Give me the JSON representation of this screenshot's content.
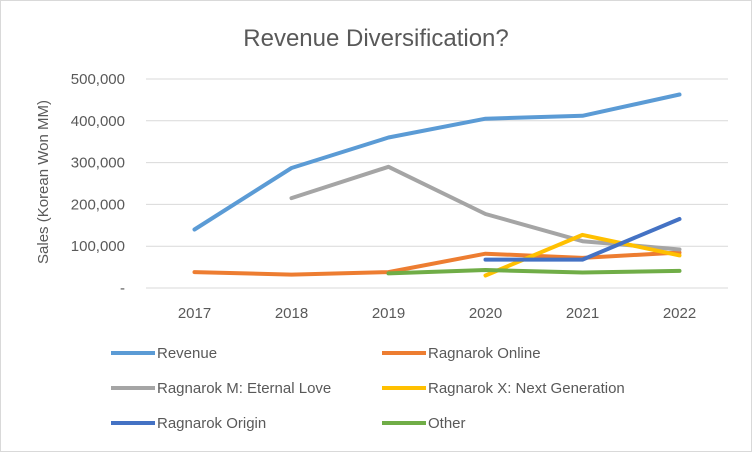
{
  "chart_data": {
    "type": "line",
    "title": "Revenue Diversification?",
    "xlabel": "",
    "ylabel": "Sales (Korean Won MM)",
    "x": [
      "2017",
      "2018",
      "2019",
      "2020",
      "2021",
      "2022"
    ],
    "ylim": [
      0,
      500000
    ],
    "yticks": [
      {
        "value": 0,
        "label": "-"
      },
      {
        "value": 100000,
        "label": "100,000"
      },
      {
        "value": 200000,
        "label": "200,000"
      },
      {
        "value": 300000,
        "label": "300,000"
      },
      {
        "value": 400000,
        "label": "400,000"
      },
      {
        "value": 500000,
        "label": "500,000"
      }
    ],
    "grid": true,
    "legend_position": "bottom",
    "series": [
      {
        "name": "Revenue",
        "color": "#5b9bd5",
        "values": [
          140000,
          287000,
          360000,
          405000,
          412000,
          463000
        ]
      },
      {
        "name": "Ragnarok Online",
        "color": "#ed7d31",
        "values": [
          38000,
          32000,
          38000,
          82000,
          72000,
          85000
        ]
      },
      {
        "name": "Ragnarok M: Eternal Love",
        "color": "#a5a5a5",
        "values": [
          null,
          215000,
          290000,
          177000,
          112000,
          92000
        ]
      },
      {
        "name": "Ragnarok X: Next Generation",
        "color": "#ffc000",
        "values": [
          null,
          null,
          null,
          30000,
          127000,
          78000
        ]
      },
      {
        "name": "Ragnarok Origin",
        "color": "#4472c4",
        "values": [
          null,
          null,
          null,
          68000,
          68000,
          165000
        ]
      },
      {
        "name": "Other",
        "color": "#70ad47",
        "values": [
          null,
          null,
          35000,
          43000,
          37000,
          41000
        ]
      }
    ]
  }
}
